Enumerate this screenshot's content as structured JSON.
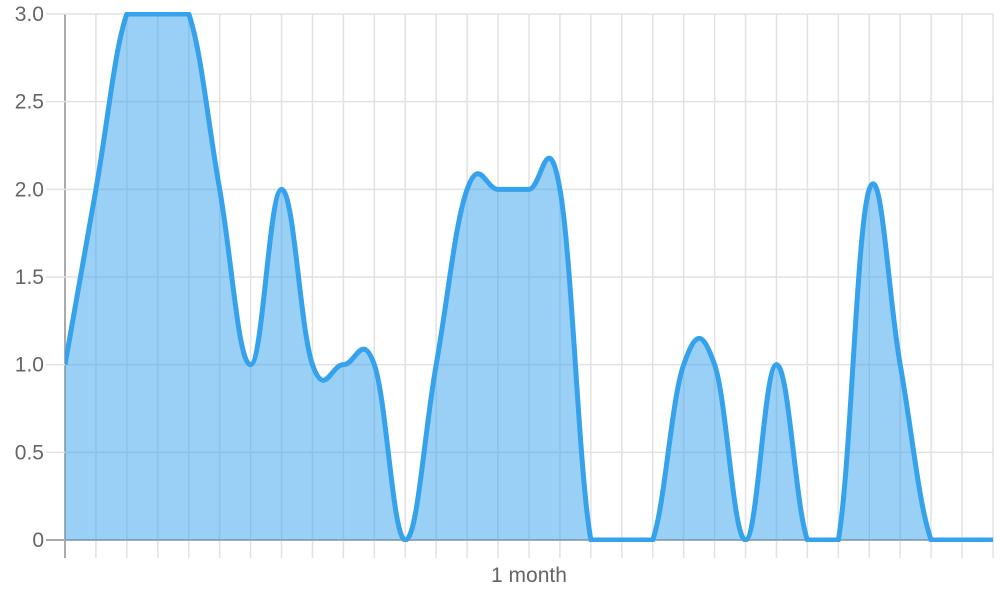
{
  "chart_data": {
    "type": "area",
    "title": "",
    "xlabel": "",
    "ylabel": "",
    "x_tick_labels": [
      {
        "index": 15,
        "label": "1 month"
      }
    ],
    "y_ticks": [
      "0",
      "0.5",
      "1.0",
      "1.5",
      "2.0",
      "2.5",
      "3.0"
    ],
    "ylim": [
      0,
      3
    ],
    "xlim": [
      0,
      30
    ],
    "grid": true,
    "legend": "none",
    "series": [
      {
        "values": [
          1,
          2,
          3,
          3,
          3,
          2,
          1,
          2,
          1,
          1,
          1,
          0,
          1,
          2,
          2,
          2,
          2,
          0,
          0,
          0,
          1,
          1,
          0,
          1,
          0,
          0,
          2,
          1,
          0,
          0,
          0
        ],
        "line_color": "#36a2eb",
        "fill_color": "rgba(54,162,235,0.5)"
      }
    ]
  }
}
